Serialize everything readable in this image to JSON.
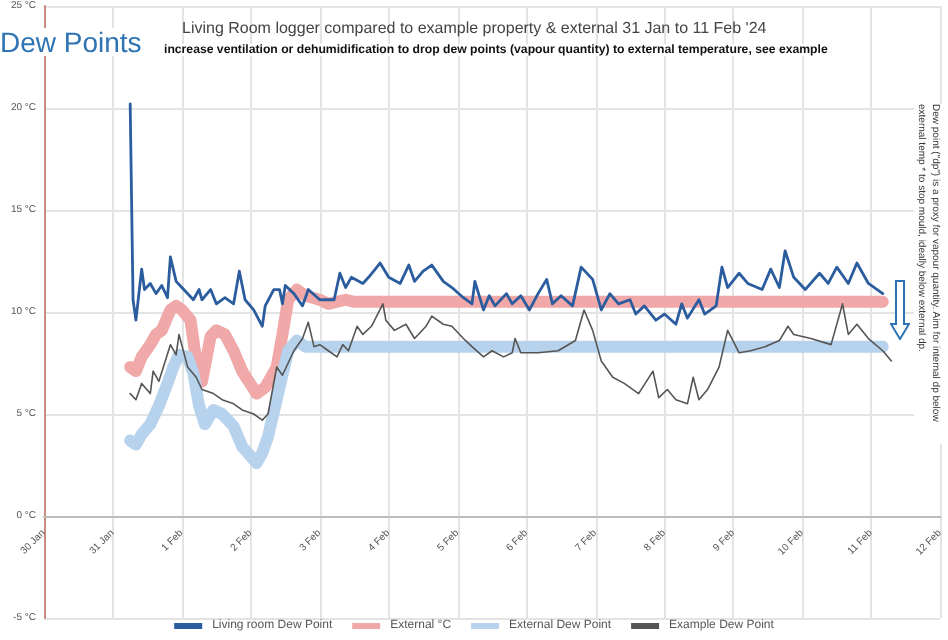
{
  "chart_data": {
    "type": "line",
    "title": "Dew Points",
    "subtitle": "Living Room logger compared to example property & external 31 Jan to 11 Feb '24",
    "annotations": [
      "increase ventilation or dehumidification to drop dew points (vapour quantity) to external temperature, see example",
      "Dew point (\"dp\") is a proxy for vapour quantity. Aim for internal dp below external temp * to stop mould, ideally below external dp."
    ],
    "xlim": [
      "2024-01-30",
      "2024-02-12"
    ],
    "xticks": [
      {
        "value": "2024-01-30",
        "label": "30 Jan"
      },
      {
        "value": "2024-01-31",
        "label": "31 Jan"
      },
      {
        "value": "2024-02-01",
        "label": "1 Feb"
      },
      {
        "value": "2024-02-02",
        "label": "2 Feb"
      },
      {
        "value": "2024-02-03",
        "label": "3 Feb"
      },
      {
        "value": "2024-02-04",
        "label": "4 Feb"
      },
      {
        "value": "2024-02-05",
        "label": "5 Feb"
      },
      {
        "value": "2024-02-06",
        "label": "6 Feb"
      },
      {
        "value": "2024-02-07",
        "label": "7 Feb"
      },
      {
        "value": "2024-02-08",
        "label": "8 Feb"
      },
      {
        "value": "2024-02-09",
        "label": "9 Feb"
      },
      {
        "value": "2024-02-10",
        "label": "10 Feb"
      },
      {
        "value": "2024-02-11",
        "label": "11 Feb"
      },
      {
        "value": "2024-02-12",
        "label": "12 Feb"
      }
    ],
    "ylim": [
      -5,
      25
    ],
    "yticks": [
      {
        "value": -5,
        "label": "-5 °C"
      },
      {
        "value": 0,
        "label": "0 °C"
      },
      {
        "value": 5,
        "label": "5 °C"
      },
      {
        "value": 10,
        "label": "10 °C"
      },
      {
        "value": 15,
        "label": "15 °C"
      },
      {
        "value": 20,
        "label": "20 °C"
      },
      {
        "value": 25,
        "label": "25 °C"
      }
    ],
    "grid": true,
    "legend": "bottom",
    "marker": "none",
    "line_style": "solid",
    "series": [
      {
        "name": "Living room Dew Point",
        "color": "#2b5c9e",
        "x": [
          "2024-01-31T06:00",
          "2024-01-31T07:00",
          "2024-01-31T08:00",
          "2024-01-31T10:00",
          "2024-01-31T11:00",
          "2024-01-31T13:00",
          "2024-01-31T15:00",
          "2024-01-31T17:00",
          "2024-01-31T19:00",
          "2024-01-31T20:00",
          "2024-01-31T22:00",
          "2024-02-01T00:00",
          "2024-02-01T04:00",
          "2024-02-01T06:00",
          "2024-02-01T07:00",
          "2024-02-01T10:00",
          "2024-02-01T12:00",
          "2024-02-01T15:00",
          "2024-02-01T18:00",
          "2024-02-01T20:00",
          "2024-02-01T22:00",
          "2024-02-02T01:00",
          "2024-02-02T04:00",
          "2024-02-02T05:00",
          "2024-02-02T08:00",
          "2024-02-02T10:00",
          "2024-02-02T11:00",
          "2024-02-02T12:00",
          "2024-02-02T15:00",
          "2024-02-02T18:00",
          "2024-02-02T20:00",
          "2024-02-03T00:00",
          "2024-02-03T05:00",
          "2024-02-03T07:00",
          "2024-02-03T09:00",
          "2024-02-03T11:00",
          "2024-02-03T15:00",
          "2024-02-03T17:00",
          "2024-02-03T21:00",
          "2024-02-04T00:00",
          "2024-02-04T04:00",
          "2024-02-04T07:00",
          "2024-02-04T09:00",
          "2024-02-04T12:00",
          "2024-02-04T15:00",
          "2024-02-04T19:00",
          "2024-02-04T22:00",
          "2024-02-05T02:00",
          "2024-02-05T05:00",
          "2024-02-05T06:00",
          "2024-02-05T09:00",
          "2024-02-05T11:00",
          "2024-02-05T13:00",
          "2024-02-05T17:00",
          "2024-02-05T19:00",
          "2024-02-05T22:00",
          "2024-02-06T01:00",
          "2024-02-06T04:00",
          "2024-02-06T07:00",
          "2024-02-06T09:00",
          "2024-02-06T12:00",
          "2024-02-06T16:00",
          "2024-02-06T19:00",
          "2024-02-06T23:00",
          "2024-02-07T02:00",
          "2024-02-07T05:00",
          "2024-02-07T08:00",
          "2024-02-07T12:00",
          "2024-02-07T14:00",
          "2024-02-07T17:00",
          "2024-02-07T21:00",
          "2024-02-08T00:00",
          "2024-02-08T04:00",
          "2024-02-08T06:00",
          "2024-02-08T08:00",
          "2024-02-08T12:00",
          "2024-02-08T14:00",
          "2024-02-08T18:00",
          "2024-02-08T20:00",
          "2024-02-08T22:00",
          "2024-02-09T02:00",
          "2024-02-09T05:00",
          "2024-02-09T10:00",
          "2024-02-09T13:00",
          "2024-02-09T16:00",
          "2024-02-09T18:00",
          "2024-02-09T21:00",
          "2024-02-10T01:00",
          "2024-02-10T06:00",
          "2024-02-10T09:00",
          "2024-02-10T12:00",
          "2024-02-10T16:00",
          "2024-02-10T19:00",
          "2024-02-10T23:00",
          "2024-02-11T04:00"
        ],
        "values": [
          20.2,
          10.6,
          9.6,
          12.1,
          11.1,
          11.4,
          10.9,
          11.3,
          10.7,
          12.7,
          11.5,
          11.2,
          10.6,
          11.1,
          10.6,
          11.1,
          10.4,
          10.7,
          10.4,
          12.0,
          10.6,
          10.1,
          9.3,
          10.3,
          11.1,
          11.1,
          10.4,
          11.3,
          10.9,
          10.3,
          11.1,
          10.6,
          10.6,
          11.9,
          11.2,
          11.7,
          11.4,
          11.7,
          12.4,
          11.7,
          11.4,
          12.3,
          11.5,
          12.0,
          12.3,
          11.5,
          11.2,
          10.7,
          10.4,
          11.5,
          10.1,
          10.8,
          10.3,
          10.9,
          10.4,
          10.8,
          10.1,
          10.9,
          11.6,
          10.4,
          10.8,
          10.3,
          12.2,
          11.6,
          10.1,
          10.9,
          10.4,
          10.6,
          9.9,
          10.3,
          9.6,
          9.9,
          9.4,
          10.4,
          9.7,
          10.6,
          9.9,
          10.3,
          12.2,
          11.2,
          11.9,
          11.4,
          11.1,
          12.1,
          11.2,
          13.0,
          11.7,
          11.1,
          11.9,
          11.4,
          12.2,
          11.4,
          12.4,
          11.4,
          10.9
        ]
      },
      {
        "name": "External °C",
        "color": "#f0a8a8",
        "x": [
          "2024-01-31T06:00",
          "2024-01-31T08:00",
          "2024-01-31T10:00",
          "2024-01-31T13:00",
          "2024-01-31T15:00",
          "2024-01-31T17:00",
          "2024-01-31T20:00",
          "2024-01-31T22:00",
          "2024-02-01T00:00",
          "2024-02-01T03:00",
          "2024-02-01T05:00",
          "2024-02-01T07:00",
          "2024-02-01T10:00",
          "2024-02-01T12:00",
          "2024-02-01T15:00",
          "2024-02-01T18:00",
          "2024-02-01T21:00",
          "2024-02-02T02:00",
          "2024-02-02T05:00",
          "2024-02-02T09:00",
          "2024-02-02T11:00",
          "2024-02-02T13:00",
          "2024-02-02T16:00",
          "2024-02-02T19:00",
          "2024-02-03T00:00",
          "2024-02-03T03:00",
          "2024-02-03T09:00",
          "2024-02-03T12:00",
          "2024-02-11T04:00"
        ],
        "values": [
          7.3,
          7.1,
          7.8,
          8.4,
          8.9,
          9.1,
          10.1,
          10.3,
          10.1,
          9.6,
          7.6,
          6.6,
          8.8,
          9.1,
          8.9,
          8.1,
          7.1,
          6.0,
          6.3,
          7.3,
          8.9,
          10.6,
          11.1,
          10.8,
          10.6,
          10.4,
          10.6,
          10.5,
          10.5
        ]
      },
      {
        "name": "External Dew Point",
        "color": "#b7d2ec",
        "x": [
          "2024-01-31T06:00",
          "2024-01-31T08:00",
          "2024-01-31T10:00",
          "2024-01-31T13:00",
          "2024-01-31T16:00",
          "2024-01-31T19:00",
          "2024-01-31T21:00",
          "2024-01-31T23:00",
          "2024-02-01T02:00",
          "2024-02-01T04:00",
          "2024-02-01T06:00",
          "2024-02-01T08:00",
          "2024-02-01T11:00",
          "2024-02-01T14:00",
          "2024-02-01T18:00",
          "2024-02-01T21:00",
          "2024-02-02T02:00",
          "2024-02-02T04:00",
          "2024-02-02T06:00",
          "2024-02-02T09:00",
          "2024-02-02T11:00",
          "2024-02-02T13:00",
          "2024-02-02T16:00",
          "2024-02-02T19:00",
          "2024-02-03T00:00",
          "2024-02-11T04:00"
        ],
        "values": [
          3.7,
          3.5,
          4.0,
          4.5,
          5.4,
          6.5,
          7.3,
          7.9,
          7.8,
          7.0,
          5.4,
          4.5,
          5.2,
          5.0,
          4.4,
          3.4,
          2.6,
          3.1,
          3.9,
          5.7,
          6.9,
          8.1,
          8.6,
          8.3,
          8.3,
          8.3
        ]
      },
      {
        "name": "Example Dew Point",
        "color": "#555555",
        "x": [
          "2024-01-31T06:00",
          "2024-01-31T08:00",
          "2024-01-31T10:00",
          "2024-01-31T13:00",
          "2024-01-31T14:00",
          "2024-01-31T16:00",
          "2024-01-31T20:00",
          "2024-01-31T22:00",
          "2024-01-31T23:00",
          "2024-02-01T02:00",
          "2024-02-01T05:00",
          "2024-02-01T07:00",
          "2024-02-01T11:00",
          "2024-02-01T14:00",
          "2024-02-01T18:00",
          "2024-02-01T21:00",
          "2024-02-02T01:00",
          "2024-02-02T04:00",
          "2024-02-02T06:00",
          "2024-02-02T09:00",
          "2024-02-02T11:00",
          "2024-02-02T15:00",
          "2024-02-02T18:00",
          "2024-02-02T20:00",
          "2024-02-02T22:00",
          "2024-02-03T00:00",
          "2024-02-03T03:00",
          "2024-02-03T06:00",
          "2024-02-03T08:00",
          "2024-02-03T10:00",
          "2024-02-03T13:00",
          "2024-02-03T15:00",
          "2024-02-03T18:00",
          "2024-02-03T22:00",
          "2024-02-03T23:00",
          "2024-02-04T02:00",
          "2024-02-04T06:00",
          "2024-02-04T09:00",
          "2024-02-04T13:00",
          "2024-02-04T15:00",
          "2024-02-04T19:00",
          "2024-02-04T22:00",
          "2024-02-05T02:00",
          "2024-02-05T05:00",
          "2024-02-05T09:00",
          "2024-02-05T12:00",
          "2024-02-05T16:00",
          "2024-02-05T19:00",
          "2024-02-05T20:00",
          "2024-02-05T22:00",
          "2024-02-06T04:00",
          "2024-02-06T11:00",
          "2024-02-06T17:00",
          "2024-02-06T20:00",
          "2024-02-06T23:00",
          "2024-02-07T02:00",
          "2024-02-07T06:00",
          "2024-02-07T10:00",
          "2024-02-07T15:00",
          "2024-02-07T20:00",
          "2024-02-07T22:00",
          "2024-02-08T01:00",
          "2024-02-08T04:00",
          "2024-02-08T08:00",
          "2024-02-08T10:00",
          "2024-02-08T12:00",
          "2024-02-08T15:00",
          "2024-02-08T19:00",
          "2024-02-08T22:00",
          "2024-02-09T02:00",
          "2024-02-09T06:00",
          "2024-02-09T11:00",
          "2024-02-09T16:00",
          "2024-02-09T19:00",
          "2024-02-09T21:00",
          "2024-02-10T03:00",
          "2024-02-10T10:00",
          "2024-02-10T14:00",
          "2024-02-10T16:00",
          "2024-02-10T19:00",
          "2024-02-10T23:00",
          "2024-02-11T04:00",
          "2024-02-11T07:00"
        ],
        "values": [
          6.0,
          5.7,
          6.5,
          6.0,
          7.1,
          6.6,
          8.4,
          7.9,
          8.9,
          7.3,
          6.8,
          6.2,
          6.0,
          5.7,
          5.5,
          5.2,
          5.0,
          4.7,
          5.0,
          7.3,
          6.9,
          8.1,
          8.7,
          9.5,
          8.3,
          8.4,
          8.1,
          7.8,
          8.4,
          8.1,
          9.3,
          8.9,
          9.3,
          10.4,
          9.6,
          9.1,
          9.4,
          8.7,
          9.3,
          9.8,
          9.4,
          9.3,
          8.7,
          8.3,
          7.8,
          8.1,
          7.8,
          8.0,
          8.7,
          8.0,
          8.0,
          8.1,
          8.6,
          10.1,
          9.1,
          7.6,
          6.8,
          6.5,
          6.0,
          7.1,
          5.8,
          6.2,
          5.7,
          5.5,
          6.8,
          5.7,
          6.2,
          7.3,
          9.1,
          8.0,
          8.1,
          8.3,
          8.6,
          9.3,
          8.9,
          8.7,
          8.4,
          10.4,
          8.9,
          9.4,
          8.7,
          8.1,
          7.6
        ]
      }
    ]
  }
}
